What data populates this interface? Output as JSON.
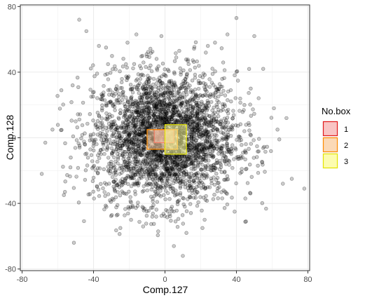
{
  "chart_data": {
    "type": "scatter",
    "title": "",
    "xlabel": "Comp.127",
    "ylabel": "Comp.128",
    "xlim": [
      -81,
      81
    ],
    "ylim": [
      -81,
      81
    ],
    "x_ticks": [
      -80,
      -40,
      0,
      40,
      80
    ],
    "y_ticks": [
      -80,
      -40,
      0,
      40,
      80
    ],
    "grid": true,
    "point_color": "#000000",
    "point_opacity": 0.25,
    "cloud": {
      "n_points": 3200,
      "center": [
        0,
        0
      ],
      "sd": 20
    },
    "outliers": [
      {
        "x": -48,
        "y": 72
      },
      {
        "x": -44,
        "y": 65
      },
      {
        "x": -37,
        "y": 56
      },
      {
        "x": -33,
        "y": 55
      },
      {
        "x": -21,
        "y": 58
      },
      {
        "x": -16,
        "y": 63
      },
      {
        "x": -2,
        "y": 62
      },
      {
        "x": 8,
        "y": 53
      },
      {
        "x": 24,
        "y": 56
      },
      {
        "x": 28,
        "y": 58
      },
      {
        "x": 35,
        "y": 63
      },
      {
        "x": 40,
        "y": 73
      },
      {
        "x": 50,
        "y": 62
      },
      {
        "x": 55,
        "y": 42
      },
      {
        "x": 61,
        "y": 18
      },
      {
        "x": 63,
        "y": 5
      },
      {
        "x": 64,
        "y": -1
      },
      {
        "x": 68,
        "y": 12
      },
      {
        "x": 71,
        "y": -25
      },
      {
        "x": 78,
        "y": -31
      },
      {
        "x": 66,
        "y": -28
      },
      {
        "x": -58,
        "y": 29
      },
      {
        "x": -63,
        "y": 5
      },
      {
        "x": -67,
        "y": -3
      },
      {
        "x": -69,
        "y": -22
      },
      {
        "x": -56,
        "y": -33
      },
      {
        "x": -51,
        "y": -64
      },
      {
        "x": -25,
        "y": -55
      },
      {
        "x": -19,
        "y": -50
      },
      {
        "x": 5,
        "y": -66
      },
      {
        "x": 10,
        "y": -72
      },
      {
        "x": 12,
        "y": -58
      },
      {
        "x": 21,
        "y": -55
      },
      {
        "x": 39,
        "y": -45
      },
      {
        "x": 45,
        "y": -37
      },
      {
        "x": 52,
        "y": -17
      },
      {
        "x": -50,
        "y": 10
      },
      {
        "x": 48,
        "y": 30
      }
    ],
    "boxes": [
      {
        "id": "1",
        "x": [
          -6,
          5
        ],
        "y": [
          -3,
          5
        ],
        "stroke": "#e31a1c",
        "fill": "#fbb4b4"
      },
      {
        "id": "2",
        "x": [
          -10,
          7
        ],
        "y": [
          -7,
          5
        ],
        "stroke": "#ff8c00",
        "fill": "#fdd0a2"
      },
      {
        "id": "3",
        "x": [
          0,
          12
        ],
        "y": [
          -10,
          8
        ],
        "stroke": "#e5e500",
        "fill": "#ffff99"
      }
    ],
    "legend": {
      "title": "No.box",
      "position": "right",
      "entries": [
        {
          "label": "1",
          "stroke": "#e31a1c",
          "fill": "#fbb4b4"
        },
        {
          "label": "2",
          "stroke": "#ff8c00",
          "fill": "#fdd0a2"
        },
        {
          "label": "3",
          "stroke": "#e5e500",
          "fill": "#ffff99"
        }
      ]
    }
  }
}
